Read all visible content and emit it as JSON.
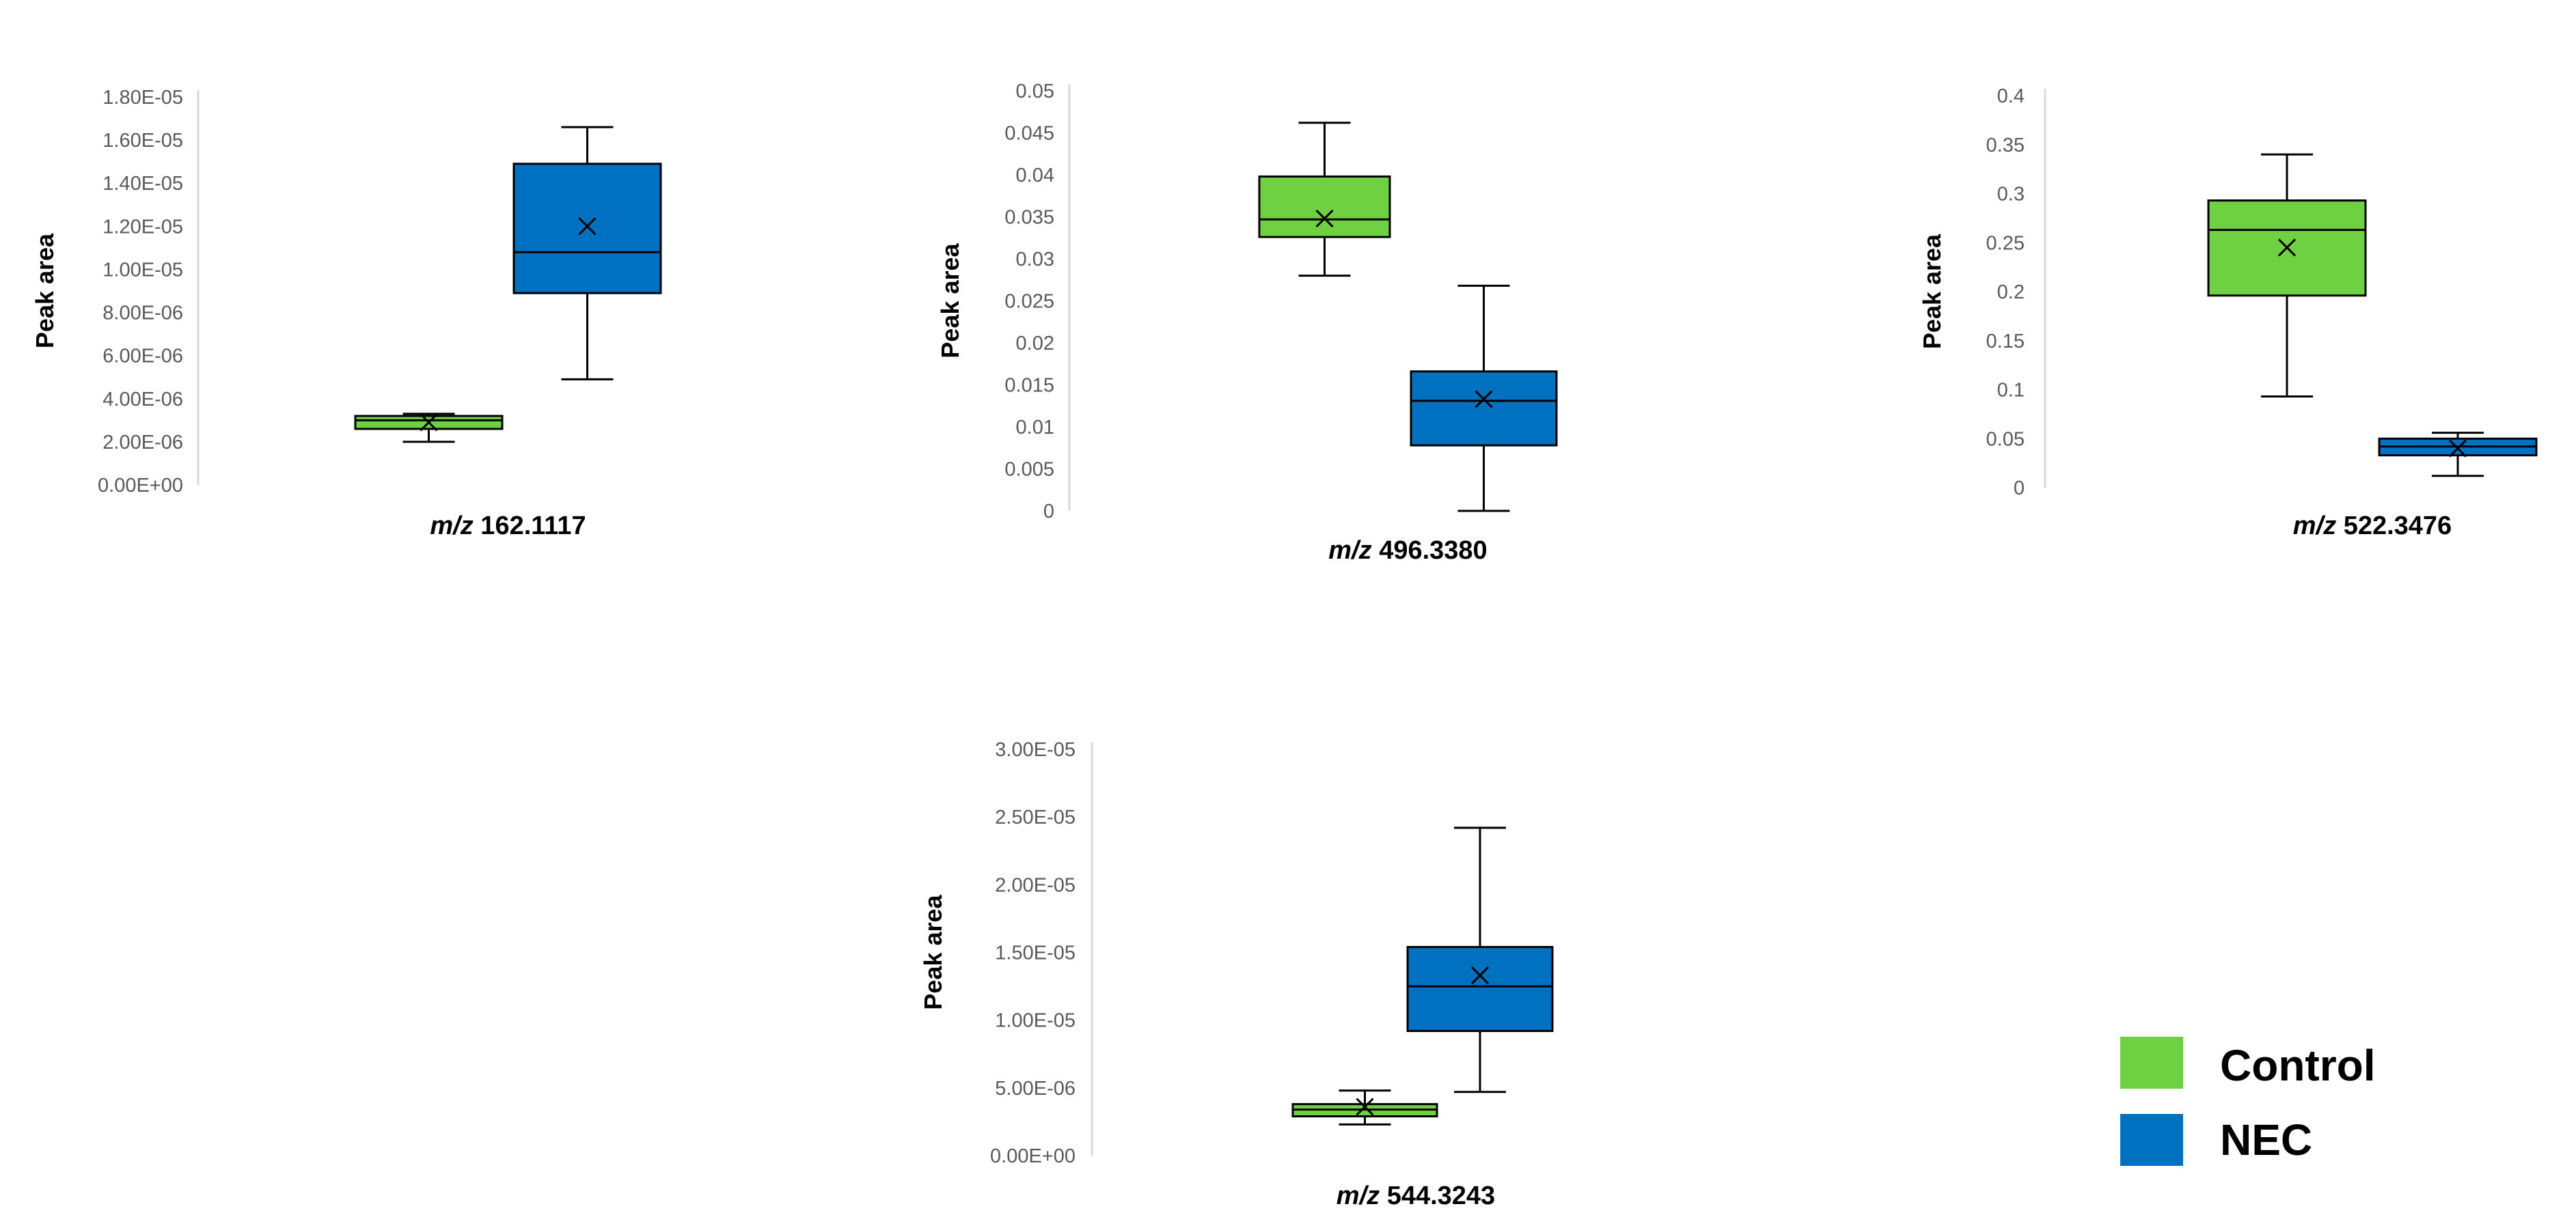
{
  "colors": {
    "control": "#6fd141",
    "nec": "#0070c0",
    "axis": "#d9d9d9",
    "stroke": "#000000"
  },
  "legend": [
    {
      "label": "Control",
      "color": "#6fd141"
    },
    {
      "label": "NEC",
      "color": "#0070c0"
    }
  ],
  "chart_data": [
    {
      "type": "box",
      "ylabel": "Peak area",
      "xlabel_prefix": "m/z",
      "xlabel_value": "162.1117",
      "ylim": [
        0,
        1.8e-05
      ],
      "yticks": [
        0,
        2e-06,
        4e-06,
        6e-06,
        8e-06,
        1e-05,
        1.2e-05,
        1.4e-05,
        1.6e-05,
        1.8e-05
      ],
      "ytick_labels": [
        "0.00E+00",
        "2.00E-06",
        "4.00E-06",
        "6.00E-06",
        "8.00E-06",
        "1.00E-05",
        "1.20E-05",
        "1.40E-05",
        "1.60E-05",
        "1.80E-05"
      ],
      "series": [
        {
          "name": "Control",
          "min": 2e-06,
          "q1": 2.6e-06,
          "median": 3e-06,
          "q3": 3.2e-06,
          "max": 3.3e-06,
          "mean": 2.9e-06
        },
        {
          "name": "NEC",
          "min": 4.9e-06,
          "q1": 8.9e-06,
          "median": 1.08e-05,
          "q3": 1.49e-05,
          "max": 1.66e-05,
          "mean": 1.2e-05
        }
      ]
    },
    {
      "type": "box",
      "ylabel": "Peak area",
      "xlabel_prefix": "m/z",
      "xlabel_value": "496.3380",
      "ylim": [
        0,
        0.05
      ],
      "yticks": [
        0,
        0.005,
        0.01,
        0.015,
        0.02,
        0.025,
        0.03,
        0.035,
        0.04,
        0.045,
        0.05
      ],
      "ytick_labels": [
        "0",
        "0.005",
        "0.01",
        "0.015",
        "0.02",
        "0.025",
        "0.03",
        "0.035",
        "0.04",
        "0.045",
        "0.05"
      ],
      "series": [
        {
          "name": "Control",
          "min": 0.028,
          "q1": 0.0326,
          "median": 0.0347,
          "q3": 0.0398,
          "max": 0.0462,
          "mean": 0.0348
        },
        {
          "name": "NEC",
          "min": 0.0,
          "q1": 0.0078,
          "median": 0.0131,
          "q3": 0.0166,
          "max": 0.0268,
          "mean": 0.0133
        }
      ]
    },
    {
      "type": "box",
      "ylabel": "Peak area",
      "xlabel_prefix": "m/z",
      "xlabel_value": "522.3476",
      "ylim": [
        0,
        0.4
      ],
      "yticks": [
        0,
        0.05,
        0.1,
        0.15,
        0.2,
        0.25,
        0.3,
        0.35,
        0.4
      ],
      "ytick_labels": [
        "0",
        "0.05",
        "0.1",
        "0.15",
        "0.2",
        "0.25",
        "0.3",
        "0.35",
        "0.4"
      ],
      "series": [
        {
          "name": "Control",
          "min": 0.093,
          "q1": 0.196,
          "median": 0.263,
          "q3": 0.293,
          "max": 0.34,
          "mean": 0.245
        },
        {
          "name": "NEC",
          "min": 0.012,
          "q1": 0.033,
          "median": 0.042,
          "q3": 0.05,
          "max": 0.056,
          "mean": 0.04
        }
      ]
    },
    {
      "type": "box",
      "ylabel": "Peak area",
      "xlabel_prefix": "m/z",
      "xlabel_value": "544.3243",
      "ylim": [
        0,
        3e-05
      ],
      "yticks": [
        0,
        5e-06,
        1e-05,
        1.5e-05,
        2e-05,
        2.5e-05,
        3e-05
      ],
      "ytick_labels": [
        "0.00E+00",
        "5.00E-06",
        "1.00E-05",
        "1.50E-05",
        "2.00E-05",
        "2.50E-05",
        "3.00E-05"
      ],
      "series": [
        {
          "name": "Control",
          "min": 2.3e-06,
          "q1": 2.9e-06,
          "median": 3.4e-06,
          "q3": 3.8e-06,
          "max": 4.8e-06,
          "mean": 3.6e-06
        },
        {
          "name": "NEC",
          "min": 4.7e-06,
          "q1": 9.2e-06,
          "median": 1.25e-05,
          "q3": 1.54e-05,
          "max": 2.42e-05,
          "mean": 1.33e-05
        }
      ]
    }
  ]
}
